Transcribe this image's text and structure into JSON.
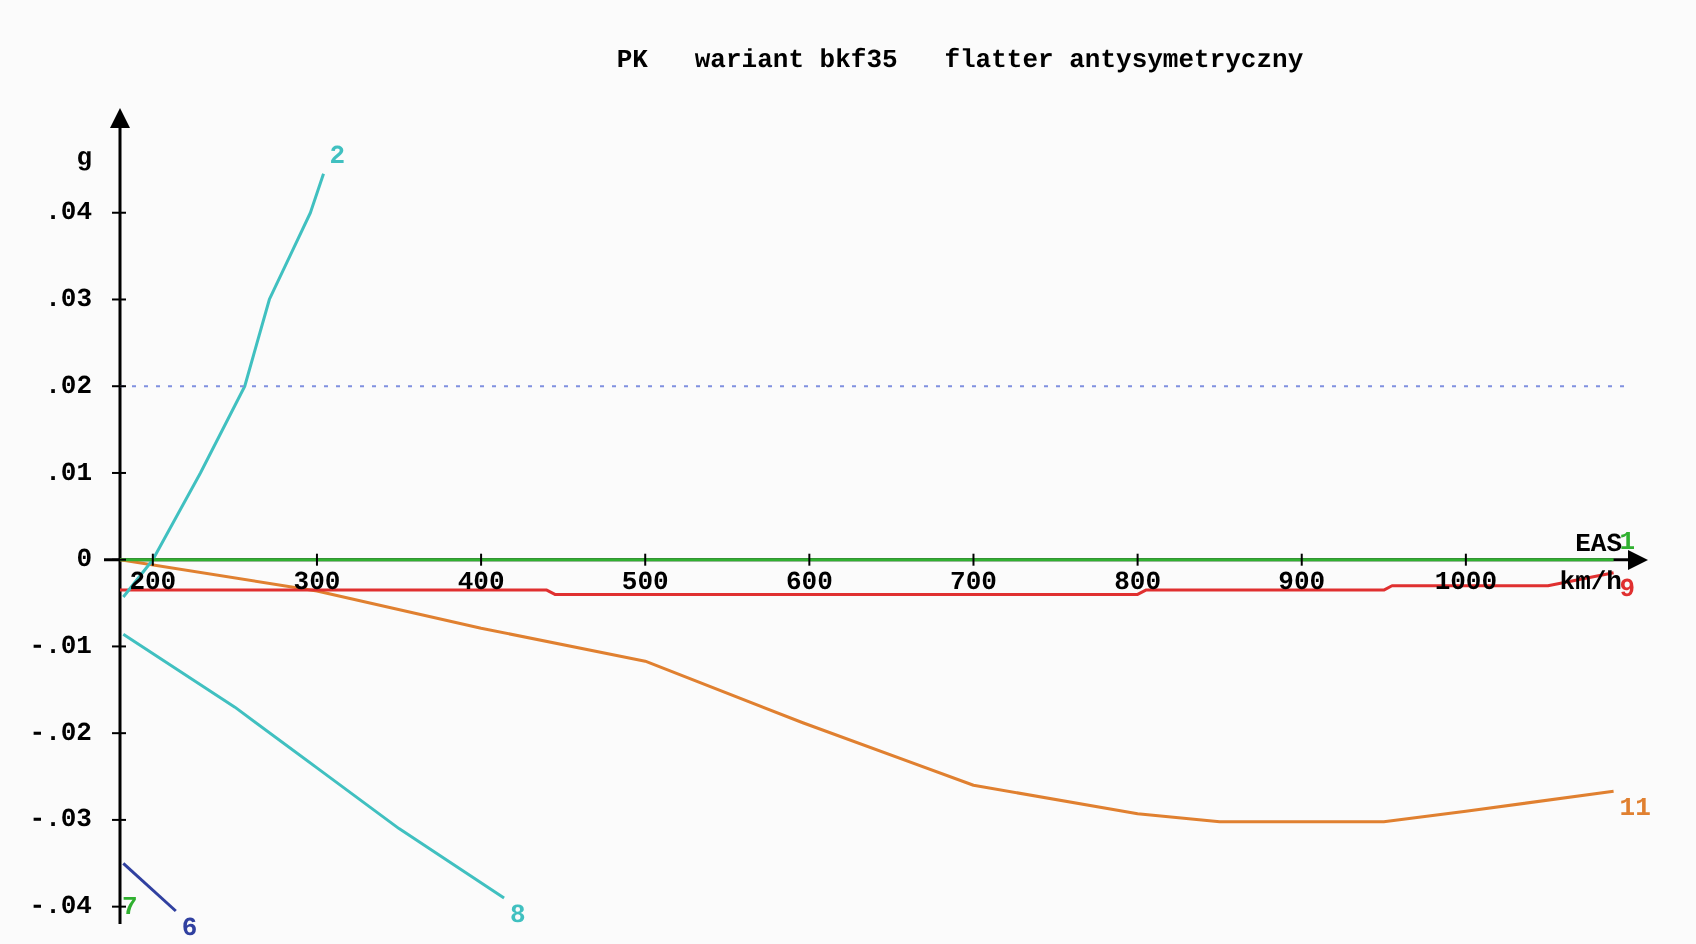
{
  "chart_data": {
    "type": "line",
    "title": "PK   wariant bkf35   flatter antysymetryczny",
    "xlabel": "EAS",
    "ylabel": "g",
    "annotations": [
      "km/h",
      "7"
    ],
    "xlim": [
      180,
      1100
    ],
    "ylim": [
      -0.042,
      0.05
    ],
    "xticks": [
      200,
      300,
      400,
      500,
      600,
      700,
      800,
      900,
      1000
    ],
    "yticks": [
      {
        "value": -0.04,
        "label": "-.04"
      },
      {
        "value": -0.03,
        "label": "-.03"
      },
      {
        "value": -0.02,
        "label": "-.02"
      },
      {
        "value": -0.01,
        "label": "-.01"
      },
      0,
      {
        "value": 0.01,
        "label": ".01"
      },
      {
        "value": 0.02,
        "label": ".02"
      },
      {
        "value": 0.03,
        "label": ".03"
      },
      {
        "value": 0.04,
        "label": ".04"
      }
    ],
    "grid": false,
    "legend": false,
    "marker": "none",
    "line_style": "solid",
    "ref_lines": [
      {
        "axis": "y",
        "value": 0.02,
        "color": "#8090e0",
        "line_style": "dotted"
      }
    ],
    "series": [
      {
        "name": "1",
        "color": "#30b030",
        "x": [
          180,
          1090
        ],
        "values": [
          0,
          0
        ]
      },
      {
        "name": "2",
        "color": "#40c0c0",
        "x": [
          182,
          200,
          229,
          256,
          271,
          296,
          304
        ],
        "values": [
          -0.0043,
          0,
          0.01,
          0.02,
          0.03,
          0.04,
          0.0445
        ]
      },
      {
        "name": "6",
        "color": "#3040a0",
        "x": [
          182,
          214
        ],
        "values": [
          -0.035,
          -0.0405
        ]
      },
      {
        "name": "8",
        "color": "#40c0c0",
        "x": [
          182,
          250,
          300,
          350,
          414
        ],
        "values": [
          -0.0086,
          -0.017,
          -0.024,
          -0.031,
          -0.039
        ]
      },
      {
        "name": "9",
        "color": "#e03030",
        "x": [
          180,
          440,
          445,
          800,
          805,
          950,
          955,
          1050,
          1090
        ],
        "values": [
          -0.0035,
          -0.0035,
          -0.004,
          -0.004,
          -0.0035,
          -0.0035,
          -0.003,
          -0.003,
          -0.0015
        ]
      },
      {
        "name": "11",
        "color": "#e08030",
        "x": [
          180,
          300,
          400,
          500,
          596,
          700,
          800,
          850,
          950,
          1000,
          1090
        ],
        "values": [
          0,
          -0.0036,
          -0.0079,
          -0.0117,
          -0.0188,
          -0.026,
          -0.0293,
          -0.0302,
          -0.0302,
          -0.029,
          -0.0267
        ]
      }
    ]
  }
}
